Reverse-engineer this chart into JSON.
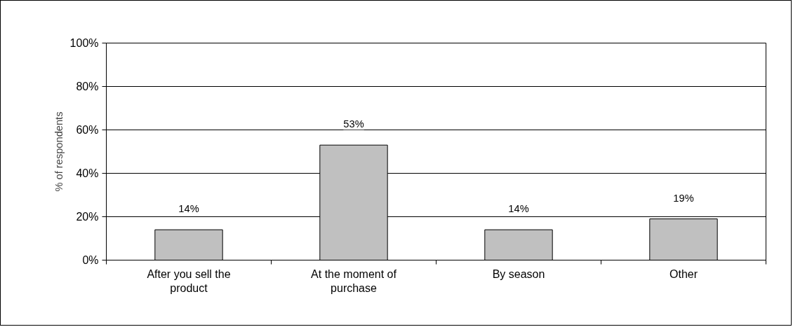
{
  "chart_data": {
    "type": "bar",
    "ylabel": "% of respondents",
    "categories": [
      "After you sell the product",
      "At the moment of purchase",
      "By season",
      "Other"
    ],
    "series": [
      {
        "color": "#c0c0c0",
        "values": [
          14,
          53,
          14,
          19
        ]
      }
    ],
    "value_labels": [
      "14%",
      "53%",
      "14%",
      "19%"
    ],
    "ylim": [
      0,
      100
    ],
    "yticks": [
      {
        "value": 0,
        "label": "0%"
      },
      {
        "value": 20,
        "label": "20%"
      },
      {
        "value": 40,
        "label": "40%"
      },
      {
        "value": 60,
        "label": "60%"
      },
      {
        "value": 80,
        "label": "80%"
      },
      {
        "value": 100,
        "label": "100%"
      }
    ],
    "grid": "y"
  }
}
